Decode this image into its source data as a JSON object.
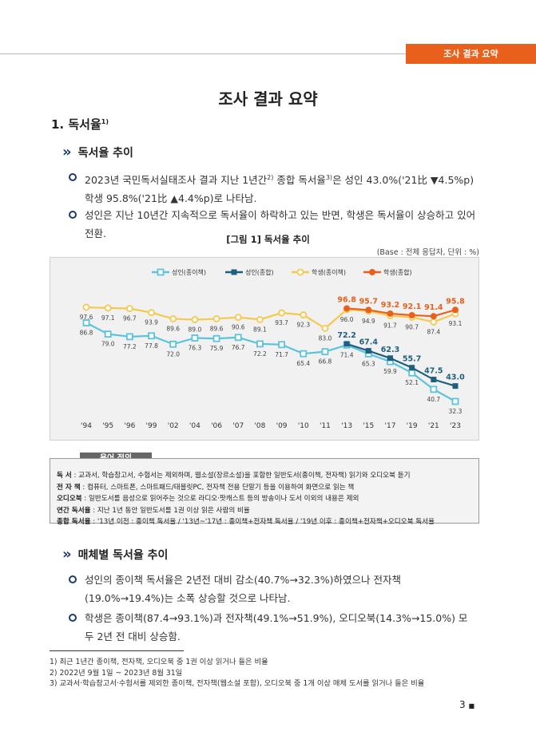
{
  "header": {
    "tag": "조사 결과 요약"
  },
  "title": "조사 결과 요약",
  "section": {
    "title": "1. 독서율",
    "sup": "1)"
  },
  "subsections": [
    {
      "heading": "독서율 추이",
      "bullets": [
        [
          "2023년 국민독서실태조사 결과 지난 1년간",
          "2)",
          " 종합 독서율",
          "3)",
          "은 성인 43.0%('21比 ▼4.5%p) 학생 95.8%('21比 ▲4.4%p)로 나타남."
        ],
        [
          "성인은 지난 10년간 지속적으로 독서율이 하락하고 있는 반면, 학생은 독서율이 상승하고 있어 전환."
        ]
      ]
    },
    {
      "heading": "매체별 독서율 추이",
      "bullets": [
        [
          "성인의 종이책 독서율은 2년전 대비 감소(40.7%→32.3%)하였으나 전자책(19.0%→19.4%)는 소폭 상승할 것으로 나타남."
        ],
        [
          "학생은 종이책(87.4→93.1%)과 전자책(49.1%→51.9%), 오디오북(14.3%→15.0%) 모두 2년 전 대비 상승함."
        ]
      ]
    }
  ],
  "figure": {
    "caption": "[그림 1] 독서율 추이",
    "note": "(Base : 전체 응답자, 단위 : %)"
  },
  "chart_data": {
    "type": "line",
    "categories": [
      "'94",
      "'95",
      "'96",
      "'99",
      "'02",
      "'04",
      "'06",
      "'07",
      "'08",
      "'09",
      "'10",
      "'11",
      "'13",
      "'15",
      "'17",
      "'19",
      "'21",
      "'23"
    ],
    "series": [
      {
        "name": "성인(종이책)",
        "color": "#5bc3dc",
        "hollow": true,
        "label_position": "below",
        "values": [
          86.8,
          79.0,
          77.2,
          77.8,
          72.0,
          76.3,
          75.9,
          76.7,
          72.2,
          71.7,
          65.4,
          66.8,
          71.4,
          65.3,
          59.9,
          52.1,
          40.7,
          32.3
        ],
        "value_labels": [
          "86.8",
          "79.0",
          "77.2",
          "77.8",
          "72.0",
          "76.3",
          "75.9",
          "76.7",
          "72.2",
          "71.7",
          "65.4",
          "66.8",
          "71.4",
          "65.3",
          "59.9",
          "52.1",
          "40.7",
          "32.3"
        ]
      },
      {
        "name": "성인(종합)",
        "color": "#1f5f7e",
        "hollow": false,
        "label_position": "above",
        "values": [
          null,
          null,
          null,
          null,
          null,
          null,
          null,
          null,
          null,
          null,
          null,
          null,
          72.2,
          67.4,
          62.3,
          55.7,
          47.5,
          43.0
        ],
        "value_labels": [
          null,
          null,
          null,
          null,
          null,
          null,
          null,
          null,
          null,
          null,
          null,
          null,
          "72.2",
          "67.4",
          "62.3",
          "55.7",
          "47.5",
          "43.0"
        ]
      },
      {
        "name": "학생(종이책)",
        "color": "#f5c94e",
        "hollow": true,
        "label_position": "below",
        "values": [
          97.6,
          97.1,
          96.7,
          93.9,
          89.6,
          89.0,
          89.6,
          90.6,
          89.1,
          93.7,
          92.3,
          83.0,
          96.0,
          94.9,
          91.7,
          90.7,
          87.4,
          93.1
        ],
        "value_labels": [
          "97.6",
          "97.1",
          "96.7",
          "93.9",
          "89.6",
          "89.0",
          "89.6",
          "90.6",
          "89.1",
          "93.7",
          "92.3",
          "83.0",
          "96.0",
          "94.9",
          "91.7",
          "90.7",
          "87.4",
          "93.1"
        ]
      },
      {
        "name": "학생(종합)",
        "color": "#e8601c",
        "hollow": false,
        "label_position": "above",
        "values": [
          null,
          null,
          null,
          null,
          null,
          null,
          null,
          null,
          null,
          null,
          null,
          null,
          96.8,
          95.7,
          93.2,
          92.1,
          91.4,
          95.8
        ],
        "value_labels": [
          null,
          null,
          null,
          null,
          null,
          null,
          null,
          null,
          null,
          null,
          null,
          null,
          "96.8",
          "95.7",
          "93.2",
          "92.1",
          "91.4",
          "95.8"
        ]
      }
    ]
  },
  "terms": {
    "title": "용어 정의",
    "rows": [
      [
        "독        서",
        "교과서, 학습참고서, 수험서는 제외하며, 웹소설(장르소설)을 포함한 일반도서(종이책, 전자책) 읽기와 오디오북 듣기"
      ],
      [
        "전 자 책",
        "컴퓨터, 스마트폰, 스마트패드/태블릿PC, 전자책 전용 단말기 등을 이용하여 화면으로 읽는 책"
      ],
      [
        "오디오북",
        "일반도서를 음성으로 읽어주는 것으로 라디오·팟캐스트 등의 방송이나 도서 이외의 내용은 제외"
      ],
      [
        "연간 독서율",
        "지난 1년 동안 일반도서를 1권 이상 읽은 사람의 비율"
      ],
      [
        "종합 독서율",
        "'13년 이전 : 종이책 독서율 / '13년~'17년 : 종이책+전자책 독서율 / '19년 이후 : 종이책+전자책+오디오북 독서율"
      ]
    ]
  },
  "footnotes": [
    "1) 최근 1년간 종이책, 전자책, 오디오북 중 1권 이상 읽거나 들은 비율",
    "2) 2022년 9월 1일 ~ 2023년 8월 31일",
    "3) 교과서·학습참고서·수험서를 제외한 종이책, 전자책(웹소설 포함), 오디오북 중 1개 이상 매체 도서를 읽거나 들은 비율"
  ],
  "page_number": "3"
}
